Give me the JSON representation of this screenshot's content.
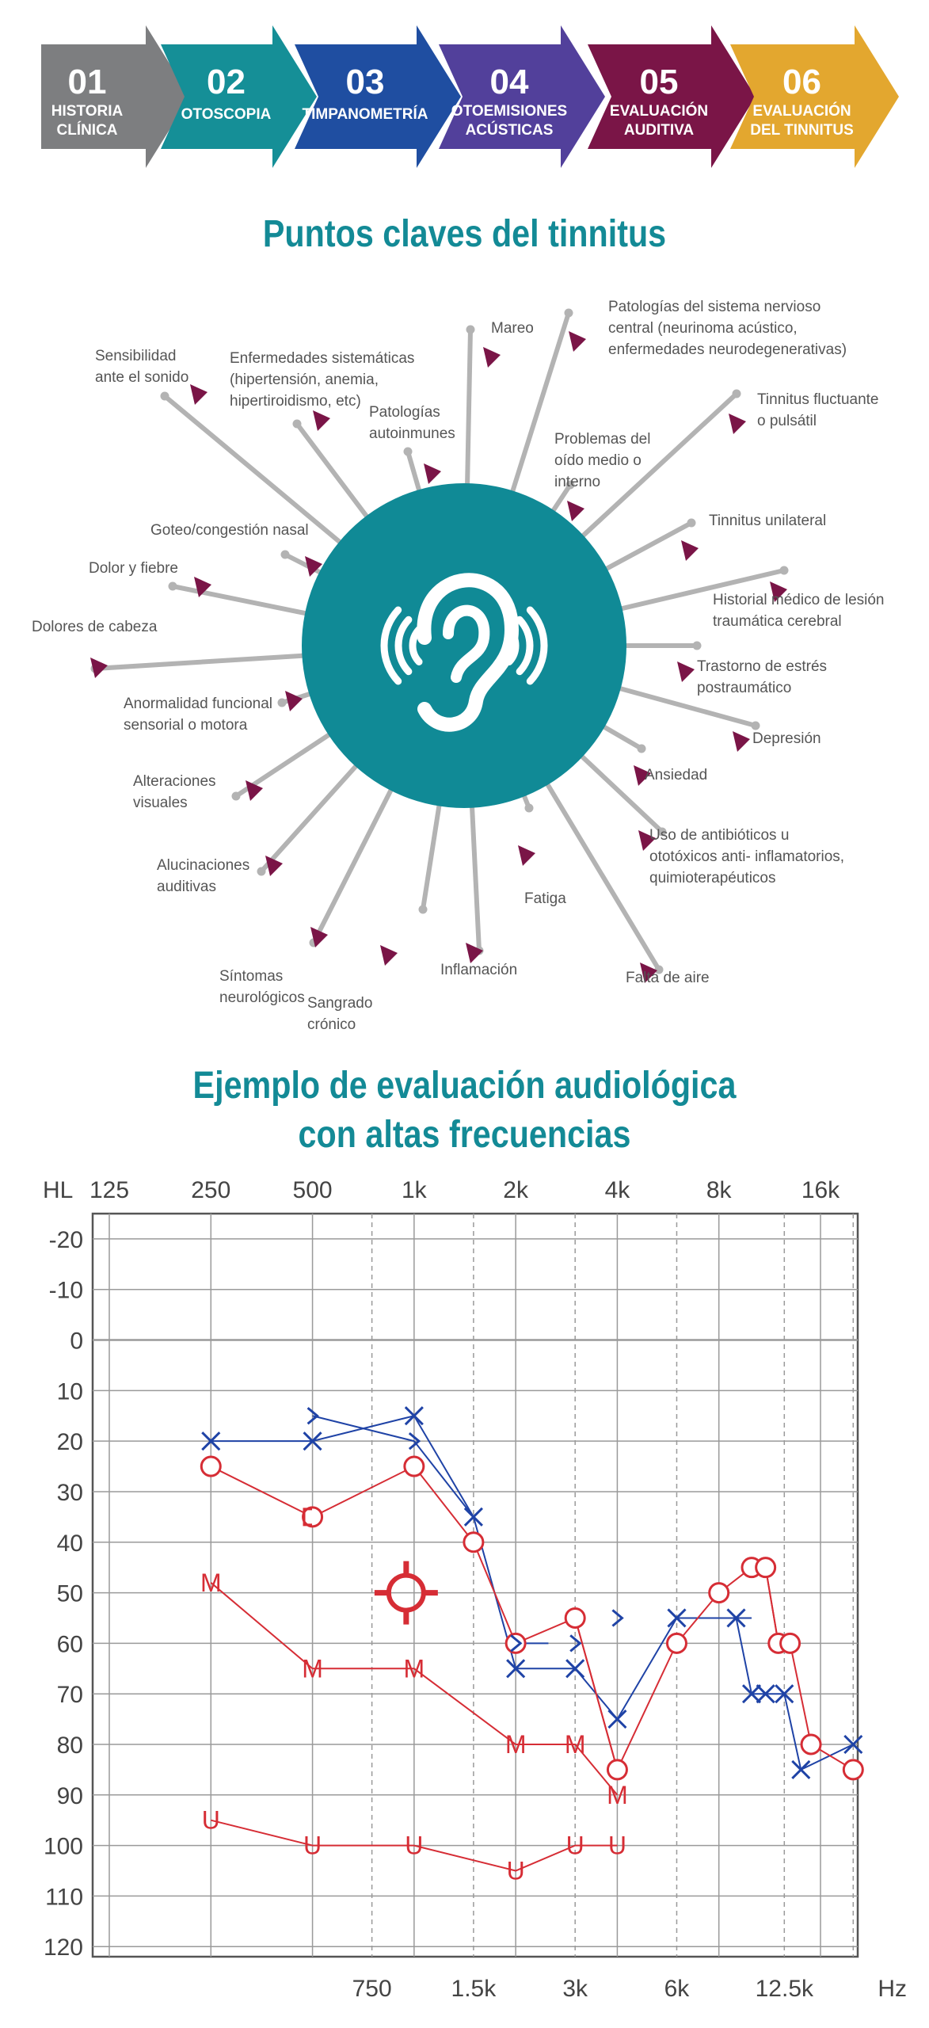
{
  "steps": [
    {
      "number": "01",
      "line1": "HISTORIA",
      "line2": "CLÍNICA",
      "color": "#7d7e80"
    },
    {
      "number": "02",
      "line1": "OTOSCOPIA",
      "line2": "",
      "color": "#158f97"
    },
    {
      "number": "03",
      "line1": "TIMPANOMETRÍA",
      "line2": "",
      "color": "#1f4ea1"
    },
    {
      "number": "04",
      "line1": "OTOEMISIONES",
      "line2": "ACÚSTICAS",
      "color": "#52409b"
    },
    {
      "number": "05",
      "line1": "EVALUACIÓN",
      "line2": "AUDITIVA",
      "color": "#7a1547"
    },
    {
      "number": "06",
      "line1": "EVALUACIÓN",
      "line2": "DEL TINNITUS",
      "color": "#e3a72f"
    }
  ],
  "section1": {
    "title": "Puntos claves del tinnitus",
    "center_color": "#108a96",
    "ray_color": "#b3b3b3",
    "marker_color": "#7a1547",
    "labels": [
      {
        "name": "mareo",
        "lines": [
          "Mareo"
        ]
      },
      {
        "name": "patologias-snc",
        "lines": [
          "Patologías del sistema nervioso",
          "central (neurinoma acústico,",
          "enfermedades neurodegenerativas)"
        ]
      },
      {
        "name": "tinnitus-fluctuante",
        "lines": [
          "Tinnitus fluctuante",
          "o pulsátil"
        ]
      },
      {
        "name": "problemas-oido-medio",
        "lines": [
          "Problemas del",
          "oído medio o",
          "interno"
        ]
      },
      {
        "name": "tinnitus-unilateral",
        "lines": [
          "Tinnitus unilateral"
        ]
      },
      {
        "name": "historial-lesion",
        "lines": [
          "Historial médico de lesión",
          "traumática cerebral"
        ]
      },
      {
        "name": "estres-postraumatico",
        "lines": [
          "Trastorno de estrés",
          "postraumático"
        ]
      },
      {
        "name": "depresion",
        "lines": [
          "Depresión"
        ]
      },
      {
        "name": "ansiedad",
        "lines": [
          "Ansiedad"
        ]
      },
      {
        "name": "antibioticos",
        "lines": [
          "Uso de antibióticos u",
          "ototóxicos anti- inflamatorios,",
          "quimioterapéuticos"
        ]
      },
      {
        "name": "falta-de-aire",
        "lines": [
          "Falta de aire"
        ]
      },
      {
        "name": "fatiga",
        "lines": [
          "Fatiga"
        ]
      },
      {
        "name": "inflamacion",
        "lines": [
          "Inflamación"
        ]
      },
      {
        "name": "sangrado-cronico",
        "lines": [
          "Sangrado",
          "crónico"
        ]
      },
      {
        "name": "sintomas-neurologicos",
        "lines": [
          "Síntomas",
          "neurológicos"
        ]
      },
      {
        "name": "alucinaciones-auditivas",
        "lines": [
          "Alucinaciones",
          "auditivas"
        ]
      },
      {
        "name": "alteraciones-visuales",
        "lines": [
          "Alteraciones",
          "visuales"
        ]
      },
      {
        "name": "anormalidad-funcional",
        "lines": [
          "Anormalidad funcional",
          "sensorial o motora"
        ]
      },
      {
        "name": "dolores-de-cabeza",
        "lines": [
          "Dolores de cabeza"
        ]
      },
      {
        "name": "dolor-y-fiebre",
        "lines": [
          "Dolor y fiebre"
        ]
      },
      {
        "name": "goteo-congestion",
        "lines": [
          "Goteo/congestión nasal"
        ]
      },
      {
        "name": "sensibilidad-sonido",
        "lines": [
          "Sensibilidad",
          "ante el sonido"
        ]
      },
      {
        "name": "enfermedades-sistematicas",
        "lines": [
          "Enfermedades sistemáticas",
          "(hipertensión, anemia,",
          "hipertiroidismo, etc)"
        ]
      },
      {
        "name": "patologias-autoinmunes",
        "lines": [
          "Patologías",
          "autoinmunes"
        ]
      }
    ]
  },
  "section2": {
    "title_line1": "Ejemplo de evaluación audiológica",
    "title_line2": "con altas frecuencias"
  },
  "chart_data": {
    "type": "line",
    "ylabel": "HL",
    "xunit": "Hz",
    "y_ticks": [
      -20,
      -10,
      0,
      10,
      20,
      30,
      40,
      50,
      60,
      70,
      80,
      90,
      100,
      110,
      120
    ],
    "ylim": [
      -25,
      122
    ],
    "x_top_ticks": [
      "125",
      "250",
      "500",
      "1k",
      "2k",
      "4k",
      "8k",
      "16k"
    ],
    "x_top_values": [
      125,
      250,
      500,
      1000,
      2000,
      4000,
      8000,
      16000
    ],
    "x_bottom_ticks": [
      "750",
      "1.5k",
      "3k",
      "6k",
      "12.5k"
    ],
    "x_bottom_values": [
      750,
      1500,
      3000,
      6000,
      12500
    ],
    "right_color": "#d62d35",
    "left_color": "#1f43a6",
    "series": [
      {
        "symbol": "X",
        "color": "left",
        "points": [
          [
            250,
            20
          ],
          [
            500,
            20
          ],
          [
            1000,
            15
          ],
          [
            1500,
            35
          ],
          [
            2000,
            65
          ],
          [
            3000,
            65
          ],
          [
            4000,
            75
          ],
          [
            6000,
            55
          ],
          [
            9000,
            55
          ],
          [
            10000,
            70
          ],
          [
            11000,
            70
          ],
          [
            12500,
            70
          ],
          [
            14000,
            85
          ],
          [
            20000,
            80
          ]
        ]
      },
      {
        "symbol": "O",
        "color": "right",
        "points": [
          [
            250,
            25
          ],
          [
            500,
            35
          ],
          [
            1000,
            25
          ],
          [
            1500,
            40
          ],
          [
            2000,
            60
          ],
          [
            3000,
            55
          ],
          [
            4000,
            85
          ],
          [
            6000,
            60
          ],
          [
            8000,
            50
          ],
          [
            10000,
            45
          ],
          [
            11000,
            45
          ],
          [
            12000,
            60
          ],
          [
            13000,
            60
          ],
          [
            15000,
            80
          ],
          [
            20000,
            85
          ]
        ]
      },
      {
        "symbol": ">",
        "color": "left",
        "points": [
          [
            500,
            15
          ],
          [
            1000,
            20
          ],
          [
            2000,
            60
          ],
          [
            3000,
            60
          ],
          [
            4000,
            55
          ]
        ]
      },
      {
        "symbol": "[",
        "color": "right",
        "points": [
          [
            480,
            35
          ]
        ]
      },
      {
        "symbol": "M",
        "color": "right",
        "points": [
          [
            250,
            48
          ],
          [
            500,
            65
          ],
          [
            1000,
            65
          ],
          [
            2000,
            80
          ],
          [
            3000,
            80
          ],
          [
            4000,
            90
          ]
        ]
      },
      {
        "symbol": "U",
        "color": "right",
        "points": [
          [
            250,
            95
          ],
          [
            500,
            100
          ],
          [
            1000,
            100
          ],
          [
            2000,
            105
          ],
          [
            3000,
            100
          ],
          [
            4000,
            100
          ]
        ]
      }
    ],
    "extra_segments": [
      {
        "color": "left",
        "from": [
          500,
          15
        ],
        "to": [
          1000,
          20
        ]
      },
      {
        "color": "left",
        "from": [
          1000,
          20
        ],
        "to": [
          1500,
          35
        ]
      },
      {
        "color": "left",
        "from": [
          2000,
          60
        ],
        "to": [
          2500,
          60
        ]
      },
      {
        "color": "left",
        "from": [
          9000,
          55
        ],
        "to": [
          10000,
          55
        ]
      },
      {
        "color": "right",
        "from": [
          11000,
          45
        ],
        "to": [
          12000,
          60
        ]
      },
      {
        "color": "right",
        "from": [
          3000,
          55
        ],
        "to": [
          4000,
          85
        ]
      }
    ],
    "tinnitus_marker": {
      "x": 1000,
      "y": 50,
      "color": "right"
    }
  }
}
